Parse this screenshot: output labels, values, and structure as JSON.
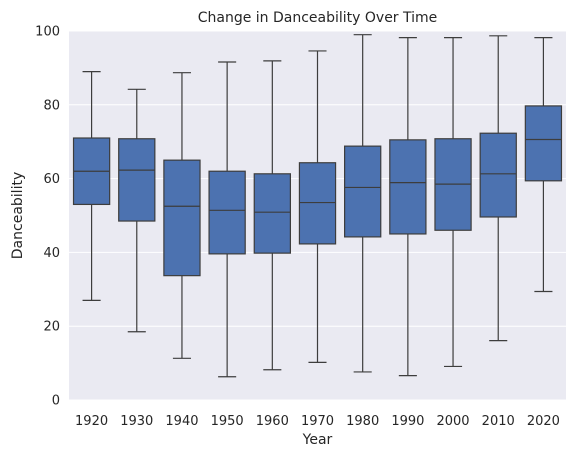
{
  "chart_data": {
    "type": "box",
    "title": "Change in Danceability Over Time",
    "xlabel": "Year",
    "ylabel": "Danceability",
    "ylim": [
      0,
      100
    ],
    "yticks": [
      0,
      20,
      40,
      60,
      80,
      100
    ],
    "grid": true,
    "colors": {
      "background": "#eaeaf2",
      "box": "#4c72b0",
      "line": "#3d3d3d",
      "grid": "#ffffff"
    },
    "categories": [
      "1920",
      "1930",
      "1940",
      "1950",
      "1960",
      "1970",
      "1980",
      "1990",
      "2000",
      "2010",
      "2020"
    ],
    "boxes": [
      {
        "whislo": 27,
        "q1": 53,
        "med": 62,
        "q3": 71,
        "whishi": 89
      },
      {
        "whislo": 18.5,
        "q1": 48.5,
        "med": 62.3,
        "q3": 70.8,
        "whishi": 84.2
      },
      {
        "whislo": 11.3,
        "q1": 33.7,
        "med": 52.5,
        "q3": 65,
        "whishi": 88.7
      },
      {
        "whislo": 6.3,
        "q1": 39.6,
        "med": 51.4,
        "q3": 62,
        "whishi": 91.6
      },
      {
        "whislo": 8.2,
        "q1": 39.8,
        "med": 50.9,
        "q3": 61.3,
        "whishi": 91.9
      },
      {
        "whislo": 10.2,
        "q1": 42.3,
        "med": 53.5,
        "q3": 64.3,
        "whishi": 94.6
      },
      {
        "whislo": 7.6,
        "q1": 44.2,
        "med": 57.6,
        "q3": 68.8,
        "whishi": 99
      },
      {
        "whislo": 6.6,
        "q1": 45,
        "med": 58.9,
        "q3": 70.5,
        "whishi": 98.2
      },
      {
        "whislo": 9.1,
        "q1": 46,
        "med": 58.5,
        "q3": 70.8,
        "whishi": 98.2
      },
      {
        "whislo": 16.1,
        "q1": 49.6,
        "med": 61.3,
        "q3": 72.3,
        "whishi": 98.7
      },
      {
        "whislo": 29.4,
        "q1": 59.4,
        "med": 70.6,
        "q3": 79.7,
        "whishi": 98.2
      }
    ]
  }
}
